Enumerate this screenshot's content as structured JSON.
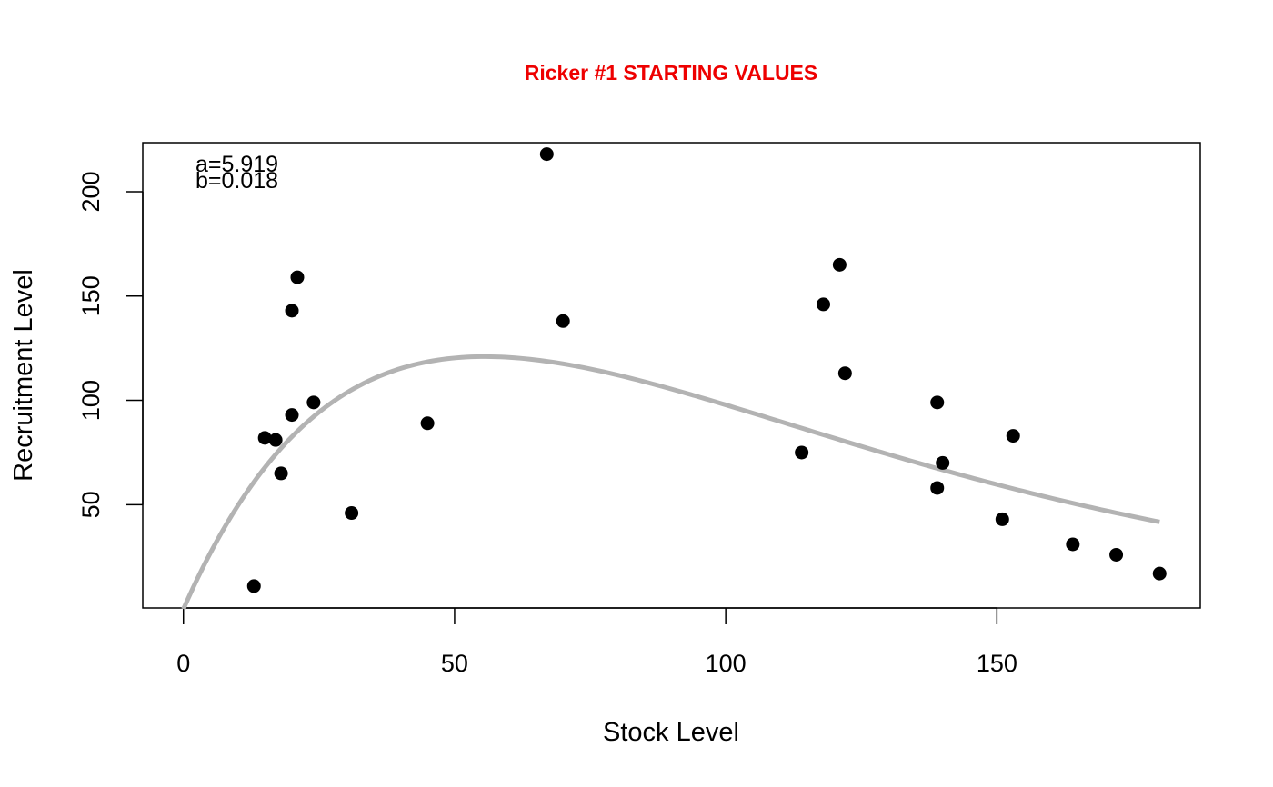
{
  "chart_data": {
    "type": "scatter",
    "title": "Ricker #1 STARTING VALUES",
    "title_color": "#ee0000",
    "xlabel": "Stock Level",
    "ylabel": "Recruitment Level",
    "xlim": [
      -7.5,
      187.5
    ],
    "ylim": [
      0.5,
      223.5
    ],
    "x_ticks": [
      0,
      50,
      100,
      150
    ],
    "y_ticks": [
      50,
      100,
      150,
      200
    ],
    "grid": false,
    "annotations": [
      "a=5.919",
      "b=0.018"
    ],
    "points": {
      "x": [
        13,
        15,
        17,
        18,
        20,
        20,
        21,
        24,
        31,
        45,
        67,
        70,
        114,
        118,
        121,
        122,
        139,
        139,
        140,
        151,
        153,
        164,
        172,
        180
      ],
      "y": [
        11,
        82,
        81,
        65,
        93,
        143,
        159,
        99,
        46,
        89,
        218,
        138,
        75,
        146,
        165,
        113,
        99,
        58,
        70,
        43,
        83,
        31,
        26,
        17
      ],
      "color": "#000000"
    },
    "curve": {
      "model": "Ricker R = a*S*exp(-b*S)",
      "a": 5.919,
      "b": 0.018,
      "x_range": [
        0,
        180
      ],
      "color": "#b3b3b3"
    }
  }
}
